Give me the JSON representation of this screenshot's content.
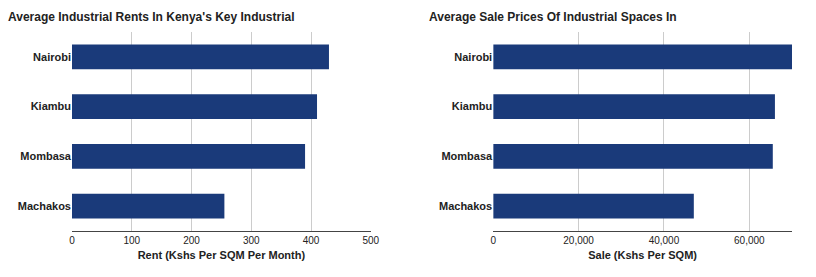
{
  "chart_data": [
    {
      "type": "bar",
      "orientation": "horizontal",
      "title": "Average Industrial Rents In Kenya's Key Industrial",
      "xlabel": "Rent (Kshs Per SQM Per Month)",
      "categories": [
        "Nairobi",
        "Kiambu",
        "Mombasa",
        "Machakos"
      ],
      "values": [
        430,
        410,
        390,
        255
      ],
      "color": "#1a3a7a",
      "xlim": [
        0,
        500
      ],
      "xticks": [
        0,
        100,
        200,
        300,
        400,
        500
      ],
      "grid": true
    },
    {
      "type": "bar",
      "orientation": "horizontal",
      "title": "Average Sale Prices Of Industrial Spaces In",
      "xlabel": "Sale (Kshs Per SQM)",
      "categories": [
        "Nairobi",
        "Kiambu",
        "Mombasa",
        "Machakos"
      ],
      "values": [
        70000,
        66000,
        65500,
        47000
      ],
      "color": "#1a3a7a",
      "xlim": [
        0,
        70000
      ],
      "xticks": [
        0,
        {
          "value": 20000,
          "label": "20,000"
        },
        {
          "value": 40000,
          "label": "40,000"
        },
        {
          "value": 60000,
          "label": "60,000"
        }
      ],
      "grid": true
    }
  ]
}
